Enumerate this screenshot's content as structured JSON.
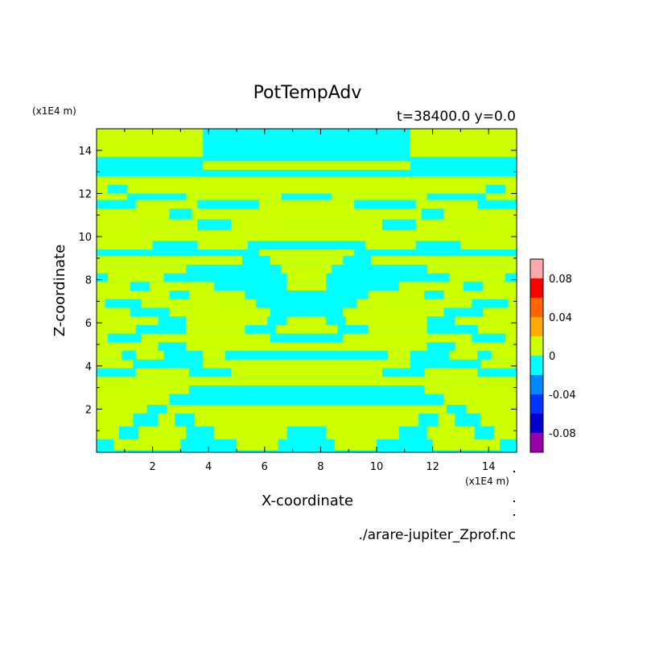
{
  "chart_data": {
    "type": "heatmap",
    "title": "PotTempAdv",
    "info": "t=38400.0 y=0.0",
    "xlabel": "X-coordinate",
    "ylabel": "Z-coordinate",
    "x_unit": "(x1E4 m)",
    "y_unit": "(x1E4 m)",
    "source_file": "./arare-jupiter_Zprof.nc",
    "xlim": [
      0,
      15
    ],
    "ylim": [
      0,
      15
    ],
    "x_ticks": [
      2,
      4,
      6,
      8,
      10,
      12,
      14
    ],
    "y_ticks": [
      2,
      4,
      6,
      8,
      10,
      12,
      14
    ],
    "x_tick_labels": [
      "2",
      "4",
      "6",
      "8",
      "10",
      "12",
      "14"
    ],
    "y_tick_labels": [
      "2",
      "4",
      "6",
      "8",
      "10",
      "12",
      "14"
    ],
    "symmetric_about_x": 7.5,
    "field_classes": [
      {
        "label": "[-0.02, 0)",
        "color": "#00ffff"
      },
      {
        "label": "[0, 0.02)",
        "color": "#ccff00"
      }
    ],
    "colorbar": {
      "levels": [
        -0.1,
        -0.08,
        -0.06,
        -0.04,
        -0.02,
        0,
        0.02,
        0.04,
        0.06,
        0.08,
        0.1
      ],
      "colors": [
        "#9900aa",
        "#0000cc",
        "#0033ff",
        "#0088ff",
        "#00ffff",
        "#ccff00",
        "#ffaa00",
        "#ff6600",
        "#ff0000",
        "#ffaaaa"
      ],
      "tick_labels": [
        "-0.08",
        "-0.04",
        "0",
        "0.04",
        "0.08"
      ],
      "tick_values": [
        -0.08,
        -0.04,
        0,
        0.04,
        0.08
      ]
    },
    "bands": [
      {
        "y": [
          0.1,
          0.6
        ],
        "positive_x": [
          [
            0.6,
            3.0
          ],
          [
            5.0,
            6.5
          ]
        ]
      },
      {
        "y": [
          0.6,
          1.2
        ],
        "positive_x": [
          [
            0.0,
            0.8
          ],
          [
            1.5,
            3.2
          ],
          [
            4.2,
            6.8
          ]
        ]
      },
      {
        "y": [
          1.2,
          1.8
        ],
        "positive_x": [
          [
            0.0,
            1.3
          ],
          [
            2.2,
            2.8
          ],
          [
            3.5,
            7.5
          ]
        ]
      },
      {
        "y": [
          1.8,
          2.2
        ],
        "positive_x": [
          [
            0.0,
            1.8
          ],
          [
            2.5,
            7.5
          ]
        ]
      },
      {
        "y": [
          2.2,
          2.7
        ],
        "positive_x": [
          [
            0.0,
            2.6
          ]
        ]
      },
      {
        "y": [
          2.7,
          3.1
        ],
        "positive_x": [
          [
            0.0,
            3.3
          ]
        ]
      },
      {
        "y": [
          3.1,
          3.5
        ],
        "positive_x": [
          [
            0.0,
            7.5
          ]
        ]
      },
      {
        "y": [
          3.5,
          3.9
        ],
        "positive_x": [
          [
            1.4,
            3.3
          ],
          [
            4.8,
            7.5
          ]
        ]
      },
      {
        "y": [
          3.9,
          4.3
        ],
        "positive_x": [
          [
            0.0,
            1.3
          ],
          [
            3.8,
            7.5
          ]
        ]
      },
      {
        "y": [
          4.3,
          4.7
        ],
        "positive_x": [
          [
            0.0,
            0.9
          ],
          [
            1.4,
            2.4
          ],
          [
            3.8,
            4.6
          ]
        ]
      },
      {
        "y": [
          4.7,
          5.1
        ],
        "positive_x": [
          [
            0.0,
            2.2
          ],
          [
            3.2,
            7.5
          ]
        ]
      },
      {
        "y": [
          5.1,
          5.5
        ],
        "positive_x": [
          [
            0.0,
            0.4
          ],
          [
            1.6,
            6.2
          ]
        ]
      },
      {
        "y": [
          5.5,
          5.9
        ],
        "positive_x": [
          [
            0.0,
            1.4
          ],
          [
            3.2,
            5.3
          ],
          [
            6.4,
            7.5
          ]
        ]
      },
      {
        "y": [
          5.9,
          6.3
        ],
        "positive_x": [
          [
            0.0,
            2.2
          ],
          [
            3.2,
            6.1
          ],
          [
            6.8,
            7.5
          ]
        ]
      },
      {
        "y": [
          6.3,
          6.7
        ],
        "positive_x": [
          [
            0.0,
            1.2
          ],
          [
            2.6,
            6.2
          ]
        ]
      },
      {
        "y": [
          6.7,
          7.1
        ],
        "positive_x": [
          [
            0.0,
            0.3
          ],
          [
            1.6,
            5.7
          ]
        ]
      },
      {
        "y": [
          7.1,
          7.5
        ],
        "positive_x": [
          [
            0.0,
            2.6
          ],
          [
            3.3,
            5.3
          ]
        ]
      },
      {
        "y": [
          7.5,
          7.9
        ],
        "positive_x": [
          [
            0.0,
            1.2
          ],
          [
            1.9,
            4.2
          ],
          [
            6.8,
            7.5
          ]
        ]
      },
      {
        "y": [
          7.9,
          8.3
        ],
        "positive_x": [
          [
            0.4,
            2.4
          ],
          [
            6.8,
            7.5
          ]
        ]
      },
      {
        "y": [
          8.3,
          8.7
        ],
        "positive_x": [
          [
            0.0,
            3.2
          ],
          [
            6.6,
            7.5
          ]
        ]
      },
      {
        "y": [
          8.7,
          9.1
        ],
        "positive_x": [
          [
            0.0,
            5.2
          ],
          [
            6.2,
            7.5
          ]
        ]
      },
      {
        "y": [
          9.1,
          9.4
        ],
        "positive_x": [
          [
            5.8,
            7.5
          ]
        ]
      },
      {
        "y": [
          9.4,
          9.8
        ],
        "positive_x": [
          [
            0.0,
            2.0
          ],
          [
            3.6,
            5.4
          ]
        ]
      },
      {
        "y": [
          9.8,
          10.3
        ],
        "positive_x": [
          [
            0.0,
            7.5
          ]
        ]
      },
      {
        "y": [
          10.3,
          10.8
        ],
        "positive_x": [
          [
            0.0,
            3.6
          ],
          [
            4.8,
            7.5
          ]
        ]
      },
      {
        "y": [
          10.8,
          11.3
        ],
        "positive_x": [
          [
            0.0,
            2.6
          ],
          [
            3.4,
            7.5
          ]
        ]
      },
      {
        "y": [
          11.3,
          11.7
        ],
        "positive_x": [
          [
            1.4,
            3.6
          ],
          [
            5.8,
            7.5
          ]
        ]
      },
      {
        "y": [
          11.7,
          12.0
        ],
        "positive_x": [
          [
            0.0,
            1.1
          ],
          [
            3.2,
            6.6
          ]
        ]
      },
      {
        "y": [
          12.0,
          12.4
        ],
        "positive_x": [
          [
            0.0,
            0.4
          ],
          [
            1.1,
            7.5
          ]
        ]
      },
      {
        "y": [
          12.4,
          12.8
        ],
        "positive_x": [
          [
            0.0,
            7.5
          ]
        ]
      },
      {
        "y": [
          13.1,
          13.5
        ],
        "positive_x": [
          [
            3.8,
            7.5
          ]
        ]
      },
      {
        "y": [
          13.7,
          15.0
        ],
        "positive_x": [
          [
            0.0,
            3.8
          ]
        ]
      }
    ]
  }
}
